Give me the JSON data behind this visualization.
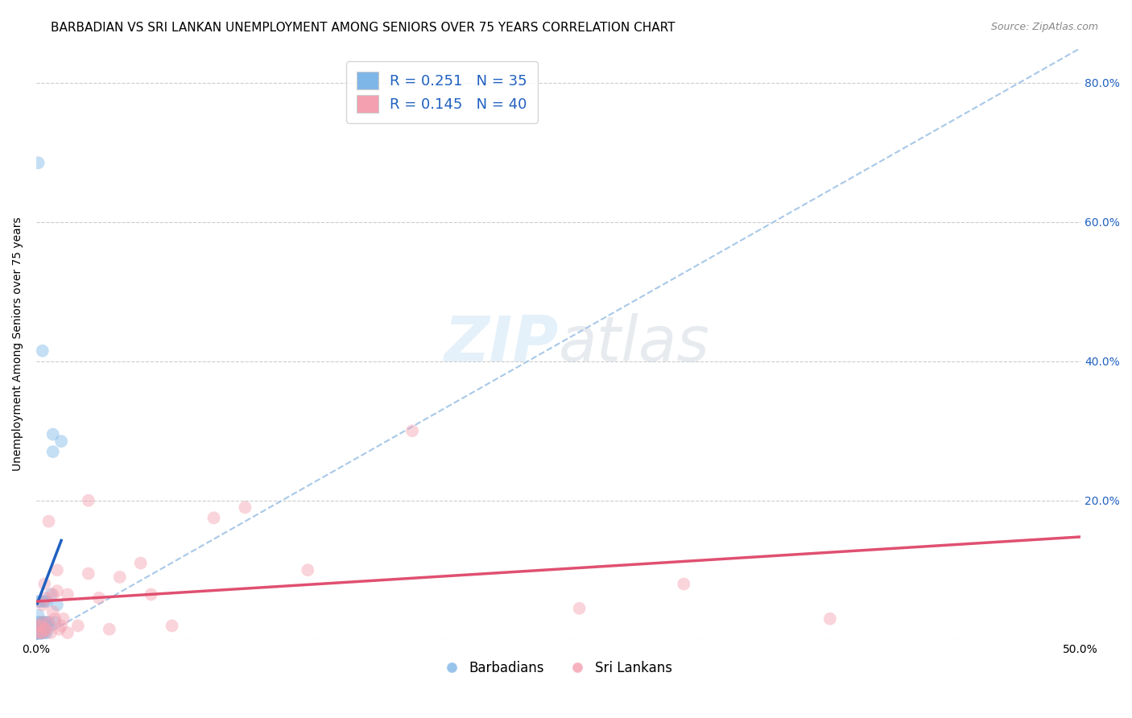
{
  "title": "BARBADIAN VS SRI LANKAN UNEMPLOYMENT AMONG SENIORS OVER 75 YEARS CORRELATION CHART",
  "source": "Source: ZipAtlas.com",
  "ylabel": "Unemployment Among Seniors over 75 years",
  "xlim": [
    0.0,
    0.5
  ],
  "ylim": [
    0.0,
    0.85
  ],
  "xticks": [
    0.0,
    0.1,
    0.2,
    0.3,
    0.4,
    0.5
  ],
  "xticklabels": [
    "0.0%",
    "",
    "",
    "",
    "",
    "50.0%"
  ],
  "yticks": [
    0.0,
    0.2,
    0.4,
    0.6,
    0.8
  ],
  "yticklabels": [
    "",
    "20.0%",
    "40.0%",
    "60.0%",
    "80.0%"
  ],
  "barbadian_color": "#7eb6e8",
  "srilanka_color": "#f4a0b0",
  "barbadian_R": 0.251,
  "barbadian_N": 35,
  "srilanka_R": 0.145,
  "srilanka_N": 40,
  "legend_label_blue": "Barbadians",
  "legend_label_pink": "Sri Lankans",
  "barbadian_x": [
    0.0005,
    0.0005,
    0.001,
    0.001,
    0.001,
    0.001,
    0.001,
    0.0015,
    0.002,
    0.002,
    0.002,
    0.002,
    0.003,
    0.003,
    0.003,
    0.003,
    0.004,
    0.004,
    0.004,
    0.004,
    0.004,
    0.005,
    0.005,
    0.005,
    0.005,
    0.006,
    0.006,
    0.007,
    0.008,
    0.009,
    0.01,
    0.012,
    0.001,
    0.003,
    0.008
  ],
  "barbadian_y": [
    0.01,
    0.005,
    0.025,
    0.035,
    0.055,
    0.01,
    0.02,
    0.015,
    0.01,
    0.02,
    0.025,
    0.055,
    0.02,
    0.01,
    0.025,
    0.055,
    0.02,
    0.01,
    0.025,
    0.055,
    0.015,
    0.01,
    0.02,
    0.025,
    0.055,
    0.02,
    0.025,
    0.065,
    0.295,
    0.025,
    0.05,
    0.285,
    0.685,
    0.415,
    0.27
  ],
  "srilanka_x": [
    0.001,
    0.001,
    0.002,
    0.002,
    0.003,
    0.003,
    0.003,
    0.004,
    0.004,
    0.005,
    0.005,
    0.006,
    0.006,
    0.007,
    0.008,
    0.008,
    0.009,
    0.01,
    0.01,
    0.011,
    0.012,
    0.013,
    0.015,
    0.015,
    0.02,
    0.025,
    0.025,
    0.03,
    0.035,
    0.04,
    0.05,
    0.055,
    0.065,
    0.085,
    0.1,
    0.13,
    0.18,
    0.26,
    0.31,
    0.38
  ],
  "srilanka_y": [
    0.01,
    0.02,
    0.01,
    0.02,
    0.01,
    0.05,
    0.025,
    0.015,
    0.08,
    0.015,
    0.06,
    0.17,
    0.025,
    0.01,
    0.065,
    0.04,
    0.03,
    0.07,
    0.1,
    0.015,
    0.02,
    0.03,
    0.01,
    0.065,
    0.02,
    0.095,
    0.2,
    0.06,
    0.015,
    0.09,
    0.11,
    0.065,
    0.02,
    0.175,
    0.19,
    0.1,
    0.3,
    0.045,
    0.08,
    0.03
  ],
  "background_color": "#ffffff",
  "grid_color": "#cccccc",
  "title_fontsize": 11,
  "axis_label_fontsize": 10,
  "tick_fontsize": 10,
  "marker_size": 130,
  "marker_alpha": 0.45,
  "trendline_blue_color": "#2060c0",
  "trendline_pink_color": "#e05070",
  "trendline_dashed_color": "#a8c8e8",
  "right_ytick_color": "#2060c0",
  "watermark_color": "#cce4f7",
  "watermark_alpha": 0.5
}
